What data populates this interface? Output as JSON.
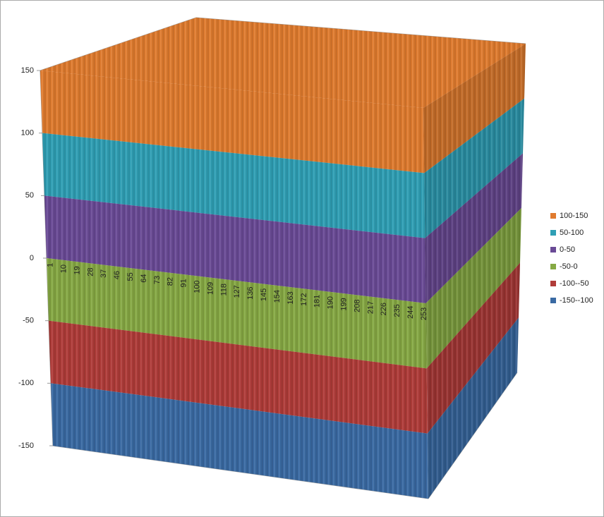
{
  "chart_data": {
    "type": "surface",
    "categories": [
      "1",
      "10",
      "19",
      "28",
      "37",
      "46",
      "55",
      "64",
      "73",
      "82",
      "91",
      "100",
      "109",
      "118",
      "127",
      "136",
      "145",
      "154",
      "163",
      "172",
      "181",
      "190",
      "199",
      "208",
      "217",
      "226",
      "235",
      "244",
      "253"
    ],
    "ylim": [
      -150,
      150
    ],
    "yticks": [
      150,
      100,
      50,
      0,
      -50,
      -100,
      -150
    ],
    "legend": "right",
    "series": [
      {
        "name": "100-150",
        "color": "#e07b2e"
      },
      {
        "name": "50-100",
        "color": "#2f9fb5"
      },
      {
        "name": "0-50",
        "color": "#6a4a96"
      },
      {
        "name": "-50-0",
        "color": "#86a944"
      },
      {
        "name": "-100--50",
        "color": "#b03c39"
      },
      {
        "name": "-150--100",
        "color": "#3a6aa3"
      }
    ]
  }
}
